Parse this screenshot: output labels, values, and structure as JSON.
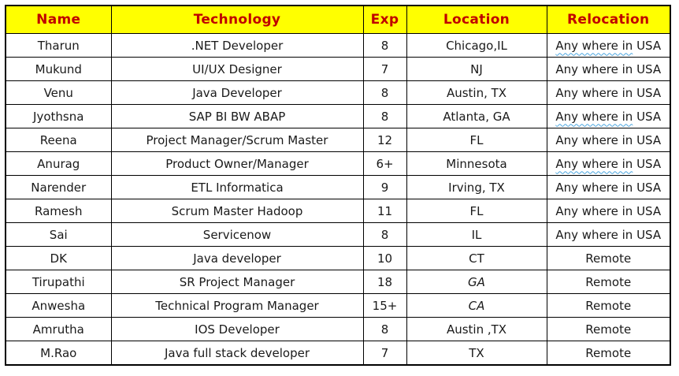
{
  "colors": {
    "header_bg": "#FFFF00",
    "header_text": "#C00000",
    "body_text": "#1A1A1A",
    "border": "#000000",
    "spellcheck_underline": "#4BA6E0"
  },
  "table": {
    "columns": [
      "Name",
      "Technology",
      "Exp",
      "Location",
      "Relocation"
    ],
    "rows": [
      {
        "name": "Tharun",
        "technology": ".NET Developer",
        "exp": "8",
        "location": "Chicago,IL",
        "location_italic": false,
        "relocation": {
          "underlined": "Any where in",
          "rest": " USA"
        }
      },
      {
        "name": "Mukund",
        "technology": "UI/UX Designer",
        "exp": "7",
        "location": "NJ",
        "location_italic": false,
        "relocation": {
          "underlined": "",
          "rest": "Any where in USA"
        }
      },
      {
        "name": "Venu",
        "technology": "Java Developer",
        "exp": "8",
        "location": "Austin, TX",
        "location_italic": false,
        "relocation": {
          "underlined": "",
          "rest": "Any where in USA"
        }
      },
      {
        "name": "Jyothsna",
        "technology": "SAP BI BW ABAP",
        "exp": "8",
        "location": "Atlanta, GA",
        "location_italic": false,
        "relocation": {
          "underlined": "Any where in",
          "rest": " USA"
        }
      },
      {
        "name": "Reena",
        "technology": "Project Manager/Scrum Master",
        "exp": "12",
        "location": "FL",
        "location_italic": false,
        "relocation": {
          "underlined": "",
          "rest": "Any where in USA"
        }
      },
      {
        "name": "Anurag",
        "technology": "Product Owner/Manager",
        "exp": "6+",
        "location": "Minnesota",
        "location_italic": false,
        "relocation": {
          "underlined": "Any where in",
          "rest": " USA"
        }
      },
      {
        "name": "Narender",
        "technology": "ETL Informatica",
        "exp": "9",
        "location": "Irving, TX",
        "location_italic": false,
        "relocation": {
          "underlined": "",
          "rest": "Any where in USA"
        }
      },
      {
        "name": "Ramesh",
        "technology": "Scrum Master Hadoop",
        "exp": "11",
        "location": "FL",
        "location_italic": false,
        "relocation": {
          "underlined": "",
          "rest": "Any where in USA"
        }
      },
      {
        "name": "Sai",
        "technology": "Servicenow",
        "exp": "8",
        "location": "IL",
        "location_italic": false,
        "relocation": {
          "underlined": "",
          "rest": "Any where in USA"
        }
      },
      {
        "name": "DK",
        "technology": "Java developer",
        "exp": "10",
        "location": "CT",
        "location_italic": false,
        "relocation": {
          "underlined": "",
          "rest": "Remote"
        }
      },
      {
        "name": "Tirupathi",
        "technology": "SR Project Manager",
        "exp": "18",
        "location": "GA",
        "location_italic": true,
        "relocation": {
          "underlined": "",
          "rest": "Remote"
        }
      },
      {
        "name": "Anwesha",
        "technology": "Technical Program Manager",
        "exp": "15+",
        "location": "CA",
        "location_italic": true,
        "relocation": {
          "underlined": "",
          "rest": "Remote"
        }
      },
      {
        "name": "Amrutha",
        "technology": "IOS Developer",
        "exp": "8",
        "location": "Austin ,TX",
        "location_italic": false,
        "relocation": {
          "underlined": "",
          "rest": "Remote"
        }
      },
      {
        "name": "M.Rao",
        "technology": "Java full stack developer",
        "exp": "7",
        "location": "TX",
        "location_italic": false,
        "relocation": {
          "underlined": "",
          "rest": "Remote"
        }
      }
    ]
  }
}
